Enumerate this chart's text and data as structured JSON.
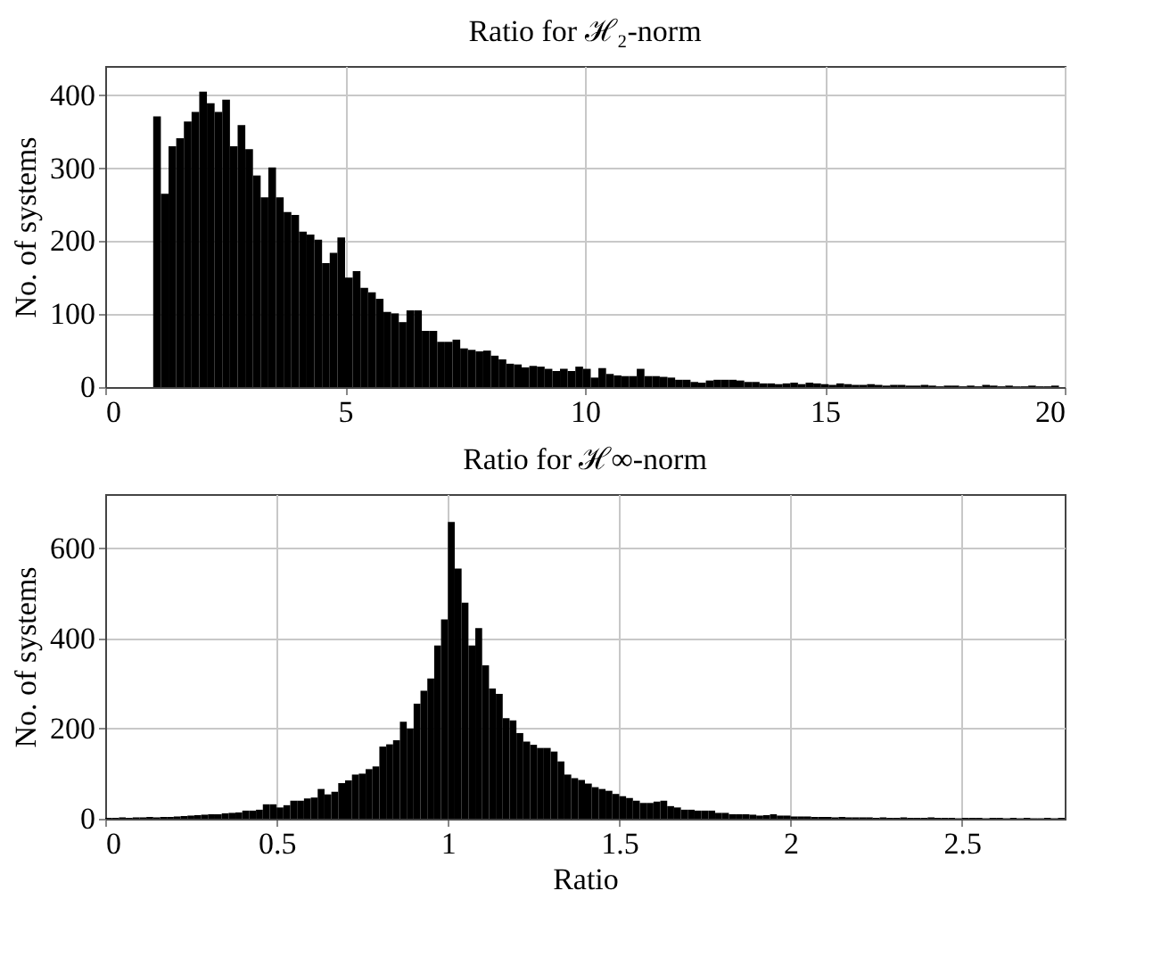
{
  "chart_data": [
    {
      "type": "histogram",
      "title": "Ratio for ℋ₂-norm",
      "ylabel": "No. of systems",
      "color": "#000000",
      "grid": true,
      "xlim": [
        0,
        20
      ],
      "xticks": [
        0,
        5,
        10,
        15,
        20
      ],
      "ylim": [
        0,
        440
      ],
      "yticks": [
        0,
        100,
        200,
        300,
        400
      ],
      "bins": [
        1,
        1.16,
        1.32,
        1.48,
        1.64,
        1.8,
        1.96,
        2.12,
        2.28,
        2.44,
        2.6,
        2.76,
        2.92,
        3.08,
        3.24,
        3.4,
        3.56,
        3.72,
        3.88,
        4.04,
        4.2,
        4.36,
        4.52,
        4.68,
        4.84,
        5,
        5.16,
        5.32,
        5.48,
        5.64,
        5.8,
        5.96,
        6.12,
        6.28,
        6.44,
        6.6,
        6.76,
        6.92,
        7.08,
        7.24,
        7.4,
        7.56,
        7.72,
        7.88,
        8.04,
        8.2,
        8.36,
        8.52,
        8.68,
        8.84,
        9,
        9.16,
        9.32,
        9.48,
        9.64,
        9.8,
        9.96,
        10.12,
        10.28,
        10.44,
        10.6,
        10.76,
        10.92,
        11.08,
        11.24,
        11.4,
        11.56,
        11.72,
        11.88,
        12.04,
        12.2,
        12.36,
        12.52,
        12.68,
        12.84,
        13,
        13.16,
        13.32,
        13.48,
        13.64,
        13.8,
        13.96,
        14.12,
        14.28,
        14.44,
        14.6,
        14.76,
        14.92,
        15.08,
        15.24,
        15.4,
        15.56,
        15.72,
        15.88,
        16.04,
        16.2,
        16.36,
        16.52,
        16.68,
        16.84,
        17,
        17.16,
        17.32,
        17.48,
        17.64,
        17.8,
        17.96,
        18.12,
        18.28,
        18.44,
        18.6,
        18.76,
        18.92,
        19.08,
        19.24,
        19.4,
        19.56,
        19.72,
        19.88
      ],
      "values": [
        371,
        265,
        330,
        341,
        364,
        377,
        405,
        389,
        377,
        394,
        330,
        359,
        326,
        290,
        260,
        301,
        260,
        240,
        236,
        213,
        209,
        202,
        170,
        184,
        205,
        150,
        159,
        136,
        130,
        121,
        103,
        101,
        89,
        105,
        105,
        77,
        77,
        62,
        62,
        65,
        53,
        51,
        49,
        50,
        43,
        38,
        32,
        31,
        27,
        29,
        28,
        25,
        22,
        25,
        22,
        28,
        25,
        13,
        26,
        18,
        16,
        15,
        15,
        25,
        15,
        15,
        14,
        13,
        10,
        10,
        7,
        6,
        9,
        10,
        10,
        10,
        9,
        7,
        7,
        5,
        5,
        4,
        5,
        6,
        4,
        6,
        5,
        4,
        3,
        5,
        4,
        3,
        3,
        4,
        3,
        2,
        3,
        3,
        2,
        2,
        3,
        2,
        1,
        2,
        2,
        1,
        2,
        1,
        3,
        2,
        1,
        2,
        1,
        1,
        2,
        1,
        1,
        2
      ]
    },
    {
      "type": "histogram",
      "title": "Ratio for ℋ∞-norm",
      "xlabel": "Ratio",
      "ylabel": "No. of systems",
      "color": "#000000",
      "grid": true,
      "xlim": [
        0,
        2.8
      ],
      "xticks": [
        0,
        0.5,
        1,
        1.5,
        2,
        2.5
      ],
      "ylim": [
        0,
        720
      ],
      "yticks": [
        0,
        200,
        400,
        600
      ],
      "bins": [
        0,
        0.02,
        0.04,
        0.06,
        0.08,
        0.1,
        0.12,
        0.14,
        0.16,
        0.18,
        0.2,
        0.22,
        0.24,
        0.26,
        0.28,
        0.3,
        0.32,
        0.34,
        0.36,
        0.38,
        0.4,
        0.42,
        0.44,
        0.46,
        0.48,
        0.5,
        0.52,
        0.54,
        0.56,
        0.58,
        0.6,
        0.62,
        0.64,
        0.66,
        0.68,
        0.7,
        0.72,
        0.74,
        0.76,
        0.78,
        0.8,
        0.82,
        0.84,
        0.86,
        0.88,
        0.9,
        0.92,
        0.94,
        0.96,
        0.98,
        1,
        1.02,
        1.04,
        1.06,
        1.08,
        1.1,
        1.12,
        1.14,
        1.16,
        1.18,
        1.2,
        1.22,
        1.24,
        1.26,
        1.28,
        1.3,
        1.32,
        1.34,
        1.36,
        1.38,
        1.4,
        1.42,
        1.44,
        1.46,
        1.48,
        1.5,
        1.52,
        1.54,
        1.56,
        1.58,
        1.6,
        1.62,
        1.64,
        1.66,
        1.68,
        1.7,
        1.72,
        1.74,
        1.76,
        1.78,
        1.8,
        1.82,
        1.84,
        1.86,
        1.88,
        1.9,
        1.92,
        1.94,
        1.96,
        1.98,
        2,
        2.02,
        2.04,
        2.06,
        2.08,
        2.1,
        2.12,
        2.14,
        2.16,
        2.18,
        2.2,
        2.22,
        2.24,
        2.26,
        2.28,
        2.3,
        2.32,
        2.34,
        2.36,
        2.38,
        2.4,
        2.42,
        2.44,
        2.46,
        2.48,
        2.5,
        2.52,
        2.54,
        2.56,
        2.58,
        2.6,
        2.62,
        2.64,
        2.66,
        2.68,
        2.7,
        2.72,
        2.74,
        2.76,
        2.78,
        2.8
      ],
      "values": [
        2,
        2,
        3,
        2,
        3,
        3,
        4,
        3,
        4,
        4,
        5,
        6,
        7,
        8,
        9,
        10,
        10,
        12,
        13,
        14,
        18,
        18,
        20,
        32,
        32,
        25,
        30,
        40,
        40,
        45,
        47,
        66,
        54,
        60,
        79,
        85,
        98,
        100,
        110,
        116,
        160,
        165,
        174,
        215,
        200,
        255,
        284,
        311,
        384,
        442,
        658,
        555,
        479,
        384,
        423,
        340,
        289,
        277,
        223,
        218,
        190,
        171,
        164,
        157,
        157,
        149,
        127,
        98,
        90,
        86,
        78,
        70,
        66,
        62,
        55,
        50,
        46,
        40,
        35,
        35,
        38,
        40,
        28,
        25,
        20,
        20,
        18,
        18,
        18,
        13,
        13,
        10,
        10,
        10,
        9,
        7,
        8,
        10,
        7,
        7,
        5,
        5,
        5,
        4,
        4,
        4,
        3,
        4,
        3,
        3,
        3,
        3,
        2,
        3,
        2,
        2,
        3,
        2,
        2,
        2,
        3,
        2,
        2,
        2,
        1,
        2,
        2,
        2,
        1,
        2,
        2,
        1,
        2,
        1,
        2,
        1,
        1,
        2,
        1,
        2
      ]
    }
  ]
}
